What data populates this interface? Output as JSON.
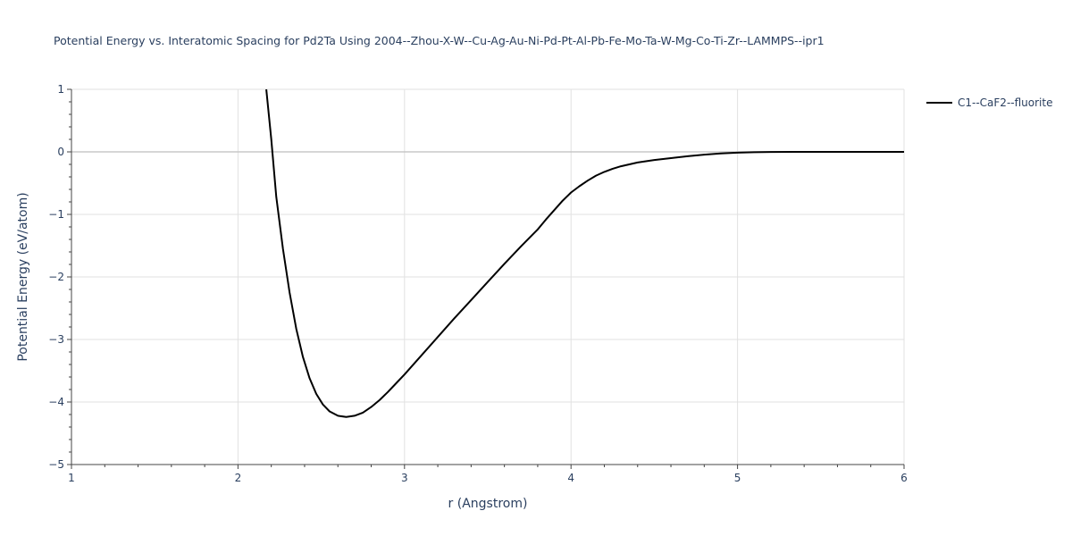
{
  "chart_data": {
    "type": "line",
    "title": "Potential Energy vs. Interatomic Spacing for Pd2Ta Using 2004--Zhou-X-W--Cu-Ag-Au-Ni-Pd-Pt-Al-Pb-Fe-Mo-Ta-W-Mg-Co-Ti-Zr--LAMMPS--ipr1",
    "xlabel": "r (Angstrom)",
    "ylabel": "Potential Energy (eV/atom)",
    "xlim": [
      1,
      6
    ],
    "ylim": [
      -5,
      1
    ],
    "xticks": [
      1,
      2,
      3,
      4,
      5,
      6
    ],
    "xtick_labels": [
      "1",
      "2",
      "3",
      "4",
      "5",
      "6"
    ],
    "yticks": [
      -5,
      -4,
      -3,
      -2,
      -1,
      0,
      1
    ],
    "ytick_labels": [
      "−5",
      "−4",
      "−3",
      "−2",
      "−1",
      "0",
      "1"
    ],
    "grid": true,
    "legend_position": "top-right",
    "series": [
      {
        "name": "C1--CaF2--fluorite",
        "color": "#000000",
        "x": [
          2.17,
          2.2,
          2.23,
          2.27,
          2.31,
          2.35,
          2.39,
          2.43,
          2.47,
          2.51,
          2.55,
          2.6,
          2.65,
          2.7,
          2.75,
          2.8,
          2.85,
          2.9,
          2.95,
          3.0,
          3.1,
          3.2,
          3.3,
          3.4,
          3.5,
          3.6,
          3.7,
          3.8,
          3.85,
          3.9,
          3.95,
          4.0,
          4.05,
          4.1,
          4.15,
          4.2,
          4.25,
          4.3,
          4.35,
          4.4,
          4.5,
          4.6,
          4.7,
          4.8,
          4.9,
          5.0,
          5.1,
          5.2,
          5.4,
          5.6,
          5.8,
          6.0
        ],
        "y": [
          1.0,
          0.2,
          -0.72,
          -1.55,
          -2.25,
          -2.83,
          -3.28,
          -3.62,
          -3.87,
          -4.04,
          -4.15,
          -4.22,
          -4.24,
          -4.22,
          -4.17,
          -4.08,
          -3.97,
          -3.84,
          -3.7,
          -3.56,
          -3.26,
          -2.96,
          -2.66,
          -2.37,
          -2.08,
          -1.79,
          -1.51,
          -1.24,
          -1.08,
          -0.93,
          -0.78,
          -0.65,
          -0.55,
          -0.46,
          -0.38,
          -0.32,
          -0.27,
          -0.23,
          -0.2,
          -0.17,
          -0.13,
          -0.1,
          -0.07,
          -0.045,
          -0.025,
          -0.012,
          -0.005,
          -0.002,
          0.0,
          0.0,
          0.0,
          0.0
        ]
      }
    ]
  }
}
